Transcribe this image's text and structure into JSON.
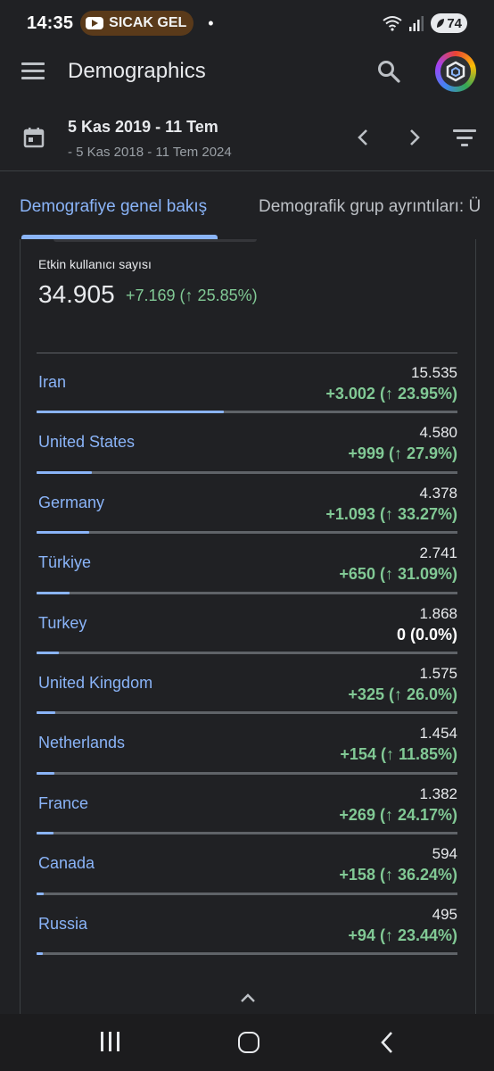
{
  "status_bar": {
    "time": "14:35",
    "notification_text": "SICAK GEL",
    "dot": "•",
    "battery": "74"
  },
  "app_bar": {
    "title": "Demographics"
  },
  "date_range": {
    "primary": "5 Kas 2019 - 11 Tem",
    "comparison": "- 5 Kas 2018 - 11 Tem 2024"
  },
  "tabs": [
    {
      "label": "Demografiye genel bakış",
      "active": true
    },
    {
      "label": "Demografik grup ayrıntıları: Ü",
      "active": false
    }
  ],
  "card": {
    "metric_label": "Etkin kullanıcı sayısı",
    "metric_value": "34.905",
    "metric_delta": "+7.169 (↑ 25.85%)",
    "rows": [
      {
        "name": "Iran",
        "value": "15.535",
        "delta": "+3.002 (↑ 23.95%)",
        "share": 15535
      },
      {
        "name": "United States",
        "value": "4.580",
        "delta": "+999 (↑ 27.9%)",
        "share": 4580
      },
      {
        "name": "Germany",
        "value": "4.378",
        "delta": "+1.093 (↑ 33.27%)",
        "share": 4378
      },
      {
        "name": "Türkiye",
        "value": "2.741",
        "delta": "+650 (↑ 31.09%)",
        "share": 2741
      },
      {
        "name": "Turkey",
        "value": "1.868",
        "delta": "0 (0.0%)",
        "share": 1868,
        "neutral": true
      },
      {
        "name": "United Kingdom",
        "value": "1.575",
        "delta": "+325 (↑ 26.0%)",
        "share": 1575
      },
      {
        "name": "Netherlands",
        "value": "1.454",
        "delta": "+154 (↑ 11.85%)",
        "share": 1454
      },
      {
        "name": "France",
        "value": "1.382",
        "delta": "+269 (↑ 24.17%)",
        "share": 1382
      },
      {
        "name": "Canada",
        "value": "594",
        "delta": "+158 (↑ 36.24%)",
        "share": 594
      },
      {
        "name": "Russia",
        "value": "495",
        "delta": "+94 (↑ 23.44%)",
        "share": 495
      }
    ],
    "share_total": 34905
  },
  "icons": {
    "menu": "menu-icon",
    "search": "search-icon",
    "calendar": "calendar-icon",
    "prev": "chevron-left-icon",
    "next": "chevron-right-icon",
    "filter": "filter-icon",
    "collapse": "chevron-up-icon"
  },
  "colors": {
    "background": "#202124",
    "accent": "#8ab4f8",
    "positive": "#81c995",
    "text": "#e8eaed",
    "muted": "#9aa0a6"
  }
}
